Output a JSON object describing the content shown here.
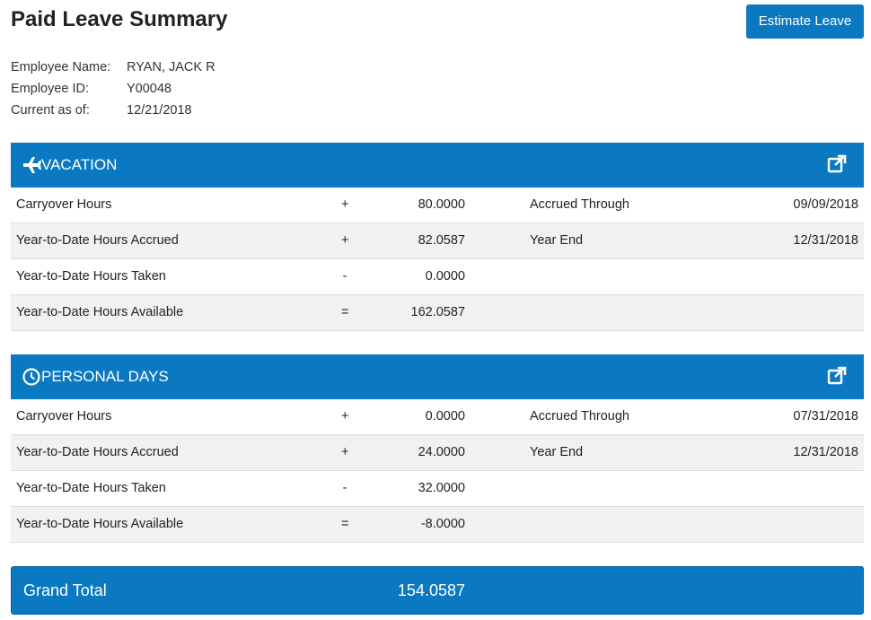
{
  "header": {
    "title": "Paid Leave Summary",
    "button": "Estimate Leave"
  },
  "employee": [
    {
      "label": "Employee Name:",
      "value": "RYAN, JACK R"
    },
    {
      "label": "Employee ID:",
      "value": "Y00048"
    },
    {
      "label": "Current as of:",
      "value": "12/21/2018"
    }
  ],
  "sections": [
    {
      "title": "VACATION",
      "rows": [
        {
          "label": "Carryover Hours",
          "op": "+",
          "value": "80.0000",
          "side_label": "Accrued Through",
          "side_value": "09/09/2018"
        },
        {
          "label": "Year-to-Date Hours Accrued",
          "op": "+",
          "value": "82.0587",
          "side_label": "Year End",
          "side_value": "12/31/2018"
        },
        {
          "label": "Year-to-Date Hours Taken",
          "op": "-",
          "value": "0.0000"
        },
        {
          "label": "Year-to-Date Hours Available",
          "op": "=",
          "value": "162.0587"
        }
      ]
    },
    {
      "title": "PERSONAL DAYS",
      "rows": [
        {
          "label": "Carryover Hours",
          "op": "+",
          "value": "0.0000",
          "side_label": "Accrued Through",
          "side_value": "07/31/2018"
        },
        {
          "label": "Year-to-Date Hours Accrued",
          "op": "+",
          "value": "24.0000",
          "side_label": "Year End",
          "side_value": "12/31/2018"
        },
        {
          "label": "Year-to-Date Hours Taken",
          "op": "-",
          "value": "32.0000"
        },
        {
          "label": "Year-to-Date Hours Available",
          "op": "=",
          "value": "-8.0000"
        }
      ]
    }
  ],
  "grand_total": {
    "label": "Grand Total",
    "value": "154.0587"
  }
}
